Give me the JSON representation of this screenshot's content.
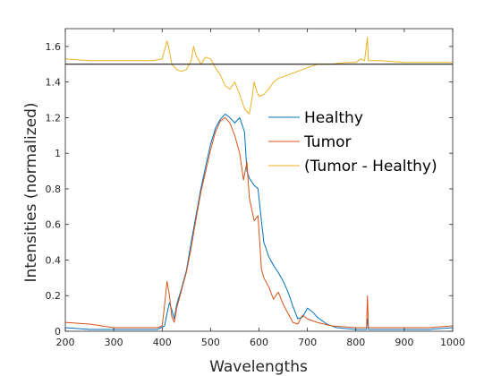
{
  "chart_data": {
    "type": "line",
    "title": "",
    "xlabel": "Wavelengths",
    "ylabel": "Intensities (normalized)",
    "xlim": [
      200,
      1000
    ],
    "ylim": [
      0,
      1.7
    ],
    "x_ticks": [
      200,
      300,
      400,
      500,
      600,
      700,
      800,
      900,
      1000
    ],
    "y_ticks": [
      0,
      0.2,
      0.4,
      0.6,
      0.8,
      1,
      1.2,
      1.4,
      1.6
    ],
    "x_tick_labels": [
      "200",
      "300",
      "400",
      "500",
      "600",
      "700",
      "800",
      "900",
      "1000"
    ],
    "y_tick_labels": [
      "0",
      "0.2",
      "0.4",
      "0.6",
      "0.8",
      "1",
      "1.2",
      "1.4",
      "1.6"
    ],
    "grid": false,
    "legend_position": "right",
    "reference_line": {
      "y": 1.5,
      "color": "#000000"
    },
    "series": [
      {
        "name": "Healthy",
        "color": "#0072BD",
        "points": [
          [
            200,
            0.02
          ],
          [
            250,
            0.01
          ],
          [
            300,
            0.01
          ],
          [
            350,
            0.01
          ],
          [
            390,
            0.01
          ],
          [
            405,
            0.03
          ],
          [
            410,
            0.1
          ],
          [
            415,
            0.16
          ],
          [
            420,
            0.12
          ],
          [
            425,
            0.07
          ],
          [
            430,
            0.15
          ],
          [
            440,
            0.24
          ],
          [
            450,
            0.34
          ],
          [
            460,
            0.5
          ],
          [
            470,
            0.65
          ],
          [
            480,
            0.8
          ],
          [
            490,
            0.93
          ],
          [
            500,
            1.05
          ],
          [
            510,
            1.14
          ],
          [
            520,
            1.19
          ],
          [
            530,
            1.22
          ],
          [
            540,
            1.2
          ],
          [
            550,
            1.17
          ],
          [
            560,
            1.2
          ],
          [
            570,
            1.12
          ],
          [
            575,
            0.9
          ],
          [
            580,
            0.86
          ],
          [
            590,
            0.82
          ],
          [
            598,
            0.8
          ],
          [
            605,
            0.62
          ],
          [
            610,
            0.5
          ],
          [
            620,
            0.42
          ],
          [
            630,
            0.37
          ],
          [
            640,
            0.33
          ],
          [
            650,
            0.28
          ],
          [
            660,
            0.22
          ],
          [
            670,
            0.14
          ],
          [
            680,
            0.07
          ],
          [
            690,
            0.08
          ],
          [
            700,
            0.13
          ],
          [
            710,
            0.11
          ],
          [
            720,
            0.08
          ],
          [
            730,
            0.06
          ],
          [
            740,
            0.04
          ],
          [
            760,
            0.02
          ],
          [
            800,
            0.01
          ],
          [
            822,
            0.01
          ],
          [
            824,
            0.07
          ],
          [
            826,
            0.01
          ],
          [
            850,
            0.01
          ],
          [
            900,
            0.01
          ],
          [
            950,
            0.01
          ],
          [
            1000,
            0.02
          ]
        ]
      },
      {
        "name": "Tumor",
        "color": "#D95319",
        "points": [
          [
            200,
            0.05
          ],
          [
            250,
            0.04
          ],
          [
            300,
            0.02
          ],
          [
            350,
            0.02
          ],
          [
            390,
            0.02
          ],
          [
            400,
            0.03
          ],
          [
            405,
            0.15
          ],
          [
            410,
            0.28
          ],
          [
            415,
            0.2
          ],
          [
            420,
            0.08
          ],
          [
            425,
            0.05
          ],
          [
            430,
            0.13
          ],
          [
            440,
            0.23
          ],
          [
            450,
            0.33
          ],
          [
            460,
            0.47
          ],
          [
            470,
            0.63
          ],
          [
            480,
            0.78
          ],
          [
            490,
            0.9
          ],
          [
            500,
            1.02
          ],
          [
            510,
            1.12
          ],
          [
            520,
            1.18
          ],
          [
            530,
            1.2
          ],
          [
            540,
            1.17
          ],
          [
            550,
            1.1
          ],
          [
            560,
            1.0
          ],
          [
            568,
            0.85
          ],
          [
            575,
            0.95
          ],
          [
            580,
            0.75
          ],
          [
            590,
            0.62
          ],
          [
            598,
            0.65
          ],
          [
            605,
            0.35
          ],
          [
            610,
            0.3
          ],
          [
            620,
            0.25
          ],
          [
            630,
            0.18
          ],
          [
            640,
            0.22
          ],
          [
            650,
            0.15
          ],
          [
            660,
            0.1
          ],
          [
            670,
            0.05
          ],
          [
            680,
            0.04
          ],
          [
            690,
            0.09
          ],
          [
            700,
            0.07
          ],
          [
            720,
            0.05
          ],
          [
            750,
            0.03
          ],
          [
            800,
            0.02
          ],
          [
            822,
            0.02
          ],
          [
            824,
            0.2
          ],
          [
            826,
            0.02
          ],
          [
            850,
            0.02
          ],
          [
            900,
            0.02
          ],
          [
            950,
            0.02
          ],
          [
            1000,
            0.03
          ]
        ]
      },
      {
        "name": "(Tumor - Healthy)",
        "color": "#EDB120",
        "points": [
          [
            200,
            1.53
          ],
          [
            250,
            1.52
          ],
          [
            300,
            1.52
          ],
          [
            350,
            1.52
          ],
          [
            380,
            1.52
          ],
          [
            400,
            1.53
          ],
          [
            405,
            1.58
          ],
          [
            410,
            1.63
          ],
          [
            413,
            1.6
          ],
          [
            420,
            1.5
          ],
          [
            430,
            1.47
          ],
          [
            440,
            1.46
          ],
          [
            450,
            1.47
          ],
          [
            460,
            1.52
          ],
          [
            465,
            1.6
          ],
          [
            470,
            1.55
          ],
          [
            480,
            1.5
          ],
          [
            490,
            1.54
          ],
          [
            500,
            1.53
          ],
          [
            510,
            1.48
          ],
          [
            520,
            1.44
          ],
          [
            530,
            1.38
          ],
          [
            540,
            1.36
          ],
          [
            550,
            1.4
          ],
          [
            560,
            1.33
          ],
          [
            570,
            1.25
          ],
          [
            580,
            1.22
          ],
          [
            585,
            1.3
          ],
          [
            590,
            1.4
          ],
          [
            595,
            1.35
          ],
          [
            600,
            1.32
          ],
          [
            610,
            1.33
          ],
          [
            620,
            1.36
          ],
          [
            630,
            1.4
          ],
          [
            640,
            1.42
          ],
          [
            660,
            1.44
          ],
          [
            680,
            1.46
          ],
          [
            700,
            1.48
          ],
          [
            720,
            1.5
          ],
          [
            750,
            1.5
          ],
          [
            780,
            1.51
          ],
          [
            800,
            1.51
          ],
          [
            810,
            1.53
          ],
          [
            818,
            1.52
          ],
          [
            824,
            1.65
          ],
          [
            826,
            1.52
          ],
          [
            850,
            1.52
          ],
          [
            900,
            1.51
          ],
          [
            950,
            1.51
          ],
          [
            1000,
            1.51
          ]
        ]
      }
    ]
  }
}
